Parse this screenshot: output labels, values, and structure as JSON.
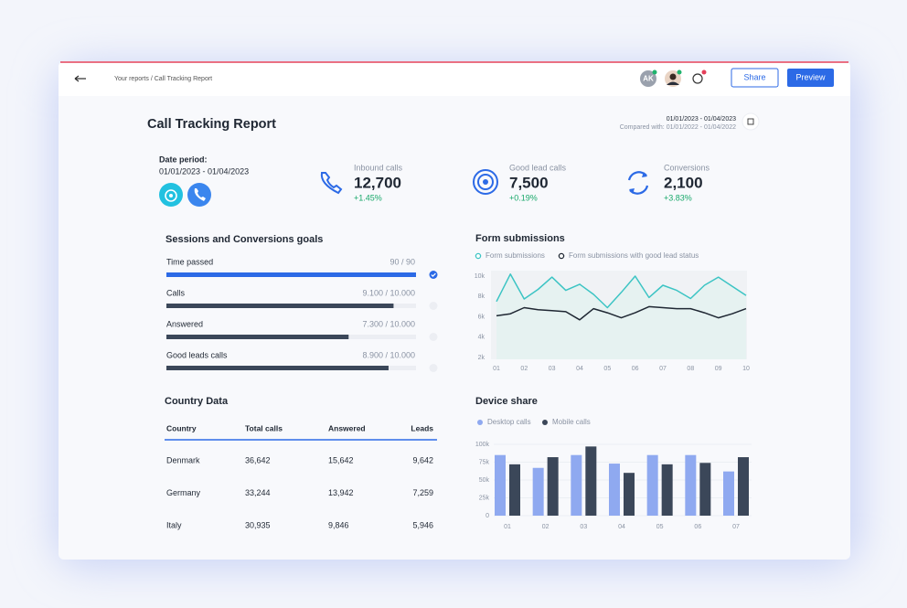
{
  "header": {
    "breadcrumb": "Your reports / Call Tracking Report",
    "avatar_initials": "AK",
    "share_button": "Share",
    "preview_button": "Preview"
  },
  "report": {
    "title": "Call Tracking Report",
    "date_range": "01/01/2023 - 01/04/2023",
    "compared_with": "Compared with: 01/01/2022 - 01/04/2022",
    "date_period_label": "Date period:",
    "date_period": "01/01/2023 - 01/04/2023"
  },
  "kpis": [
    {
      "label": "Inbound calls",
      "value": "12,700",
      "change": "+1.45%"
    },
    {
      "label": "Good lead calls",
      "value": "7,500",
      "change": "+0.19%"
    },
    {
      "label": "Conversions",
      "value": "2,100",
      "change": "+3.83%"
    }
  ],
  "goals": {
    "title": "Sessions and Conversions goals",
    "items": [
      {
        "label": "Time passed",
        "value": 90,
        "max": 90,
        "value_label": "90 / 90",
        "color": "#2c6ae6"
      },
      {
        "label": "Calls",
        "value": 9100,
        "max": 10000,
        "value_label": "9.100 / 10.000",
        "color": "#3b4759"
      },
      {
        "label": "Answered",
        "value": 7300,
        "max": 10000,
        "value_label": "7.300 / 10.000",
        "color": "#3b4759"
      },
      {
        "label": "Good leads calls",
        "value": 8900,
        "max": 10000,
        "value_label": "8.900 / 10.000",
        "color": "#3b4759"
      }
    ]
  },
  "country_table": {
    "title": "Country Data",
    "columns": [
      "Country",
      "Total calls",
      "Answered",
      "Leads"
    ],
    "rows": [
      [
        "Denmark",
        "36,642",
        "15,642",
        "9,642"
      ],
      [
        "Germany",
        "33,244",
        "13,942",
        "7,259"
      ],
      [
        "Italy",
        "30,935",
        "9,846",
        "5,946"
      ]
    ]
  },
  "chart_data": [
    {
      "type": "line",
      "title": "Form submissions",
      "categories": [
        "01",
        null,
        "02",
        null,
        "03",
        null,
        "04",
        null,
        "05",
        null,
        "06",
        null,
        "07",
        null,
        "08",
        null,
        "09",
        null,
        "10"
      ],
      "series": [
        {
          "name": "Form submissions",
          "color": "#3cc4c4",
          "values": [
            7500,
            10200,
            7750,
            8700,
            9900,
            8600,
            9200,
            8200,
            6900,
            8400,
            10000,
            7900,
            9100,
            8600,
            7800,
            9100,
            9900,
            9000,
            8100
          ]
        },
        {
          "name": "Form submissions with good lead status",
          "color": "#1f2733",
          "values": [
            6100,
            6300,
            6900,
            6700,
            6600,
            6500,
            5700,
            6800,
            6400,
            5900,
            6400,
            7000,
            6900,
            6800,
            6800,
            6400,
            5900,
            6300,
            6800
          ]
        }
      ],
      "ylim": [
        2000,
        10000
      ],
      "yticks": [
        {
          "value": 2000,
          "label": "2k"
        },
        {
          "value": 4000,
          "label": "4k"
        },
        {
          "value": 6000,
          "label": "6k"
        },
        {
          "value": 8000,
          "label": "8k"
        },
        {
          "value": 10000,
          "label": "10k"
        }
      ]
    },
    {
      "type": "bar",
      "title": "Device share",
      "categories": [
        "01",
        "02",
        "03",
        "04",
        "05",
        "06",
        "07"
      ],
      "series": [
        {
          "name": "Desktop calls",
          "color": "#8fa9f0",
          "values": [
            85000,
            67000,
            85000,
            73000,
            85000,
            85000,
            62000
          ]
        },
        {
          "name": "Mobile calls",
          "color": "#3b4759",
          "values": [
            72000,
            82000,
            97000,
            60000,
            72000,
            74000,
            82000
          ]
        }
      ],
      "ylim": [
        0,
        100000
      ],
      "yticks": [
        0,
        {
          "value": 25000,
          "label": "25k"
        },
        {
          "value": 50000,
          "label": "50k"
        },
        {
          "value": 75000,
          "label": "75k"
        },
        {
          "value": 100000,
          "label": "100k"
        }
      ],
      "grid": true
    }
  ]
}
